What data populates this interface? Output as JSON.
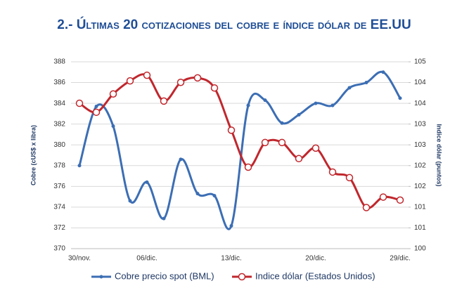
{
  "chart_data": {
    "type": "line",
    "title": "2.- Últimas 20 cotizaciones del cobre e índice dólar de EE.UU",
    "y_label": "Cobre (cUS$ x libra)",
    "y2_label": "Indice dólar (puntos)",
    "categories": [
      "30/nov.",
      null,
      null,
      null,
      "06/dic.",
      null,
      null,
      null,
      null,
      "13/dic.",
      null,
      null,
      null,
      null,
      "20/dic.",
      null,
      null,
      null,
      null,
      "29/dic."
    ],
    "series": [
      {
        "name": "Cobre precio spot (BML)",
        "color": "#3c6eb4",
        "marker": "dot",
        "values": [
          378.0,
          383.7,
          381.8,
          374.6,
          376.4,
          372.9,
          378.6,
          375.3,
          375.1,
          372.2,
          383.8,
          384.3,
          382.1,
          382.9,
          384.0,
          383.8,
          385.5,
          386.0,
          387.0,
          384.5
        ]
      },
      {
        "name": "Indice dólar (Estados Unidos)",
        "color": "#c0272d",
        "marker": "open",
        "axis": "y2",
        "values": [
          103.89,
          103.65,
          104.14,
          104.49,
          104.64,
          103.95,
          104.45,
          104.57,
          104.3,
          103.17,
          102.18,
          102.84,
          102.84,
          102.41,
          102.69,
          102.05,
          101.9,
          101.1,
          101.38,
          101.3
        ]
      }
    ],
    "ylim": [
      370,
      388
    ],
    "yticks": [
      370,
      372,
      374,
      376,
      378,
      380,
      382,
      384,
      386,
      388
    ],
    "y2lim": [
      100,
      105
    ],
    "y2ticks": [
      100,
      {
        "value": 100.5556,
        "label": "101"
      },
      {
        "value": 101.1111,
        "label": "101"
      },
      {
        "value": 101.6667,
        "label": "102"
      },
      {
        "value": 102.2222,
        "label": "102"
      },
      {
        "value": 102.7778,
        "label": "103"
      },
      {
        "value": 103.3333,
        "label": "103"
      },
      {
        "value": 103.8889,
        "label": "104"
      },
      {
        "value": 104.4444,
        "label": "104"
      },
      105
    ],
    "grid": true
  }
}
